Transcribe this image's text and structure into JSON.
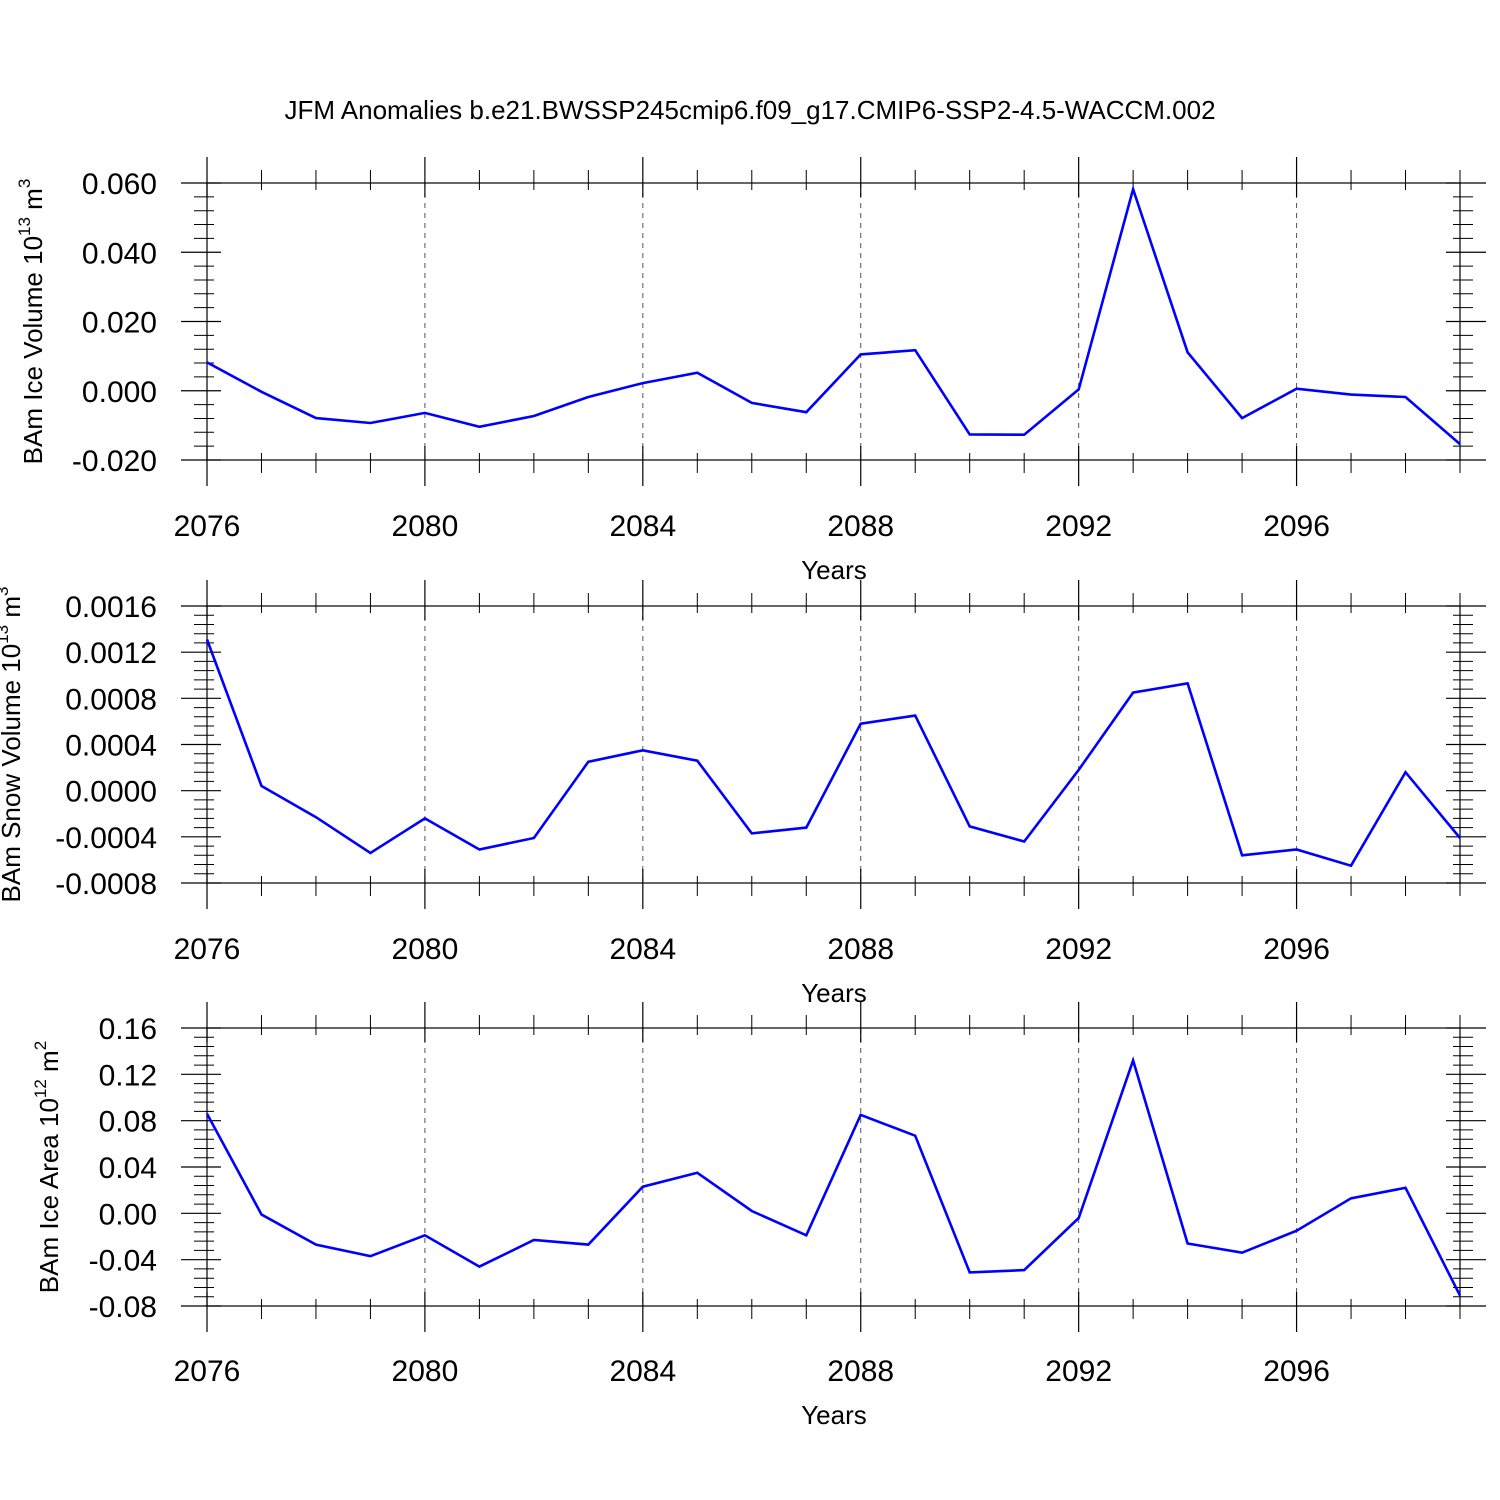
{
  "title": "JFM Anomalies b.e21.BWSSP245cmip6.f09_g17.CMIP6-SSP2-4.5-WACCM.002",
  "line_color": "#0000ff",
  "chart_data": [
    {
      "type": "line",
      "xlabel": "Years",
      "ylabel": {
        "main": "BAm Ice Volume 10",
        "exp": "13",
        "unit": "m",
        "unit_exp": "3"
      },
      "x": [
        2076,
        2077,
        2078,
        2079,
        2080,
        2081,
        2082,
        2083,
        2084,
        2085,
        2086,
        2087,
        2088,
        2089,
        2090,
        2091,
        2092,
        2093,
        2094,
        2095,
        2096,
        2097,
        2098,
        2099
      ],
      "values": [
        0.0082,
        -0.0003,
        -0.0079,
        -0.0093,
        -0.0064,
        -0.0104,
        -0.0073,
        -0.0018,
        0.0022,
        0.0052,
        -0.0035,
        -0.0062,
        0.0105,
        0.0117,
        -0.0126,
        -0.0127,
        0.0004,
        0.0582,
        0.0111,
        -0.0079,
        0.0006,
        -0.0011,
        -0.0018,
        -0.0154
      ],
      "ylim": [
        -0.02,
        0.06
      ],
      "yticks": [
        "-0.020",
        "0.000",
        "0.020",
        "0.040",
        "0.060"
      ],
      "xticks": [
        "2076",
        "2080",
        "2084",
        "2088",
        "2092",
        "2096"
      ],
      "xlim": [
        2076,
        2099
      ]
    },
    {
      "type": "line",
      "xlabel": "Years",
      "ylabel": {
        "main": "BAm Snow Volume 10",
        "exp": "13",
        "unit": "m",
        "unit_exp": "3"
      },
      "x": [
        2076,
        2077,
        2078,
        2079,
        2080,
        2081,
        2082,
        2083,
        2084,
        2085,
        2086,
        2087,
        2088,
        2089,
        2090,
        2091,
        2092,
        2093,
        2094,
        2095,
        2096,
        2097,
        2098,
        2099
      ],
      "values": [
        0.00131,
        4e-05,
        -0.00023,
        -0.00054,
        -0.00024,
        -0.00051,
        -0.00041,
        0.00025,
        0.00035,
        0.00026,
        -0.00037,
        -0.00032,
        0.00058,
        0.00065,
        -0.00031,
        -0.00044,
        0.00018,
        0.00085,
        0.00093,
        -0.00056,
        -0.00051,
        -0.00065,
        0.00016,
        -0.00041
      ],
      "ylim": [
        -0.0008,
        0.0016
      ],
      "yticks": [
        "-0.0008",
        "-0.0004",
        "0.0000",
        "0.0004",
        "0.0008",
        "0.0012",
        "0.0016"
      ],
      "xticks": [
        "2076",
        "2080",
        "2084",
        "2088",
        "2092",
        "2096"
      ],
      "xlim": [
        2076,
        2099
      ]
    },
    {
      "type": "line",
      "xlabel": "Years",
      "ylabel": {
        "main": "BAm Ice Area 10",
        "exp": "12",
        "unit": "m",
        "unit_exp": "2"
      },
      "x": [
        2076,
        2077,
        2078,
        2079,
        2080,
        2081,
        2082,
        2083,
        2084,
        2085,
        2086,
        2087,
        2088,
        2089,
        2090,
        2091,
        2092,
        2093,
        2094,
        2095,
        2096,
        2097,
        2098,
        2099
      ],
      "values": [
        0.086,
        -0.001,
        -0.027,
        -0.037,
        -0.019,
        -0.046,
        -0.023,
        -0.027,
        0.023,
        0.035,
        0.002,
        -0.019,
        0.085,
        0.067,
        -0.051,
        -0.049,
        -0.004,
        0.132,
        -0.026,
        -0.034,
        -0.015,
        0.013,
        0.022,
        -0.071
      ],
      "ylim": [
        -0.08,
        0.16
      ],
      "yticks": [
        "-0.08",
        "-0.04",
        "0.00",
        "0.04",
        "0.08",
        "0.12",
        "0.16"
      ],
      "xticks": [
        "2076",
        "2080",
        "2084",
        "2088",
        "2092",
        "2096"
      ],
      "xlim": [
        2076,
        2099
      ]
    }
  ]
}
